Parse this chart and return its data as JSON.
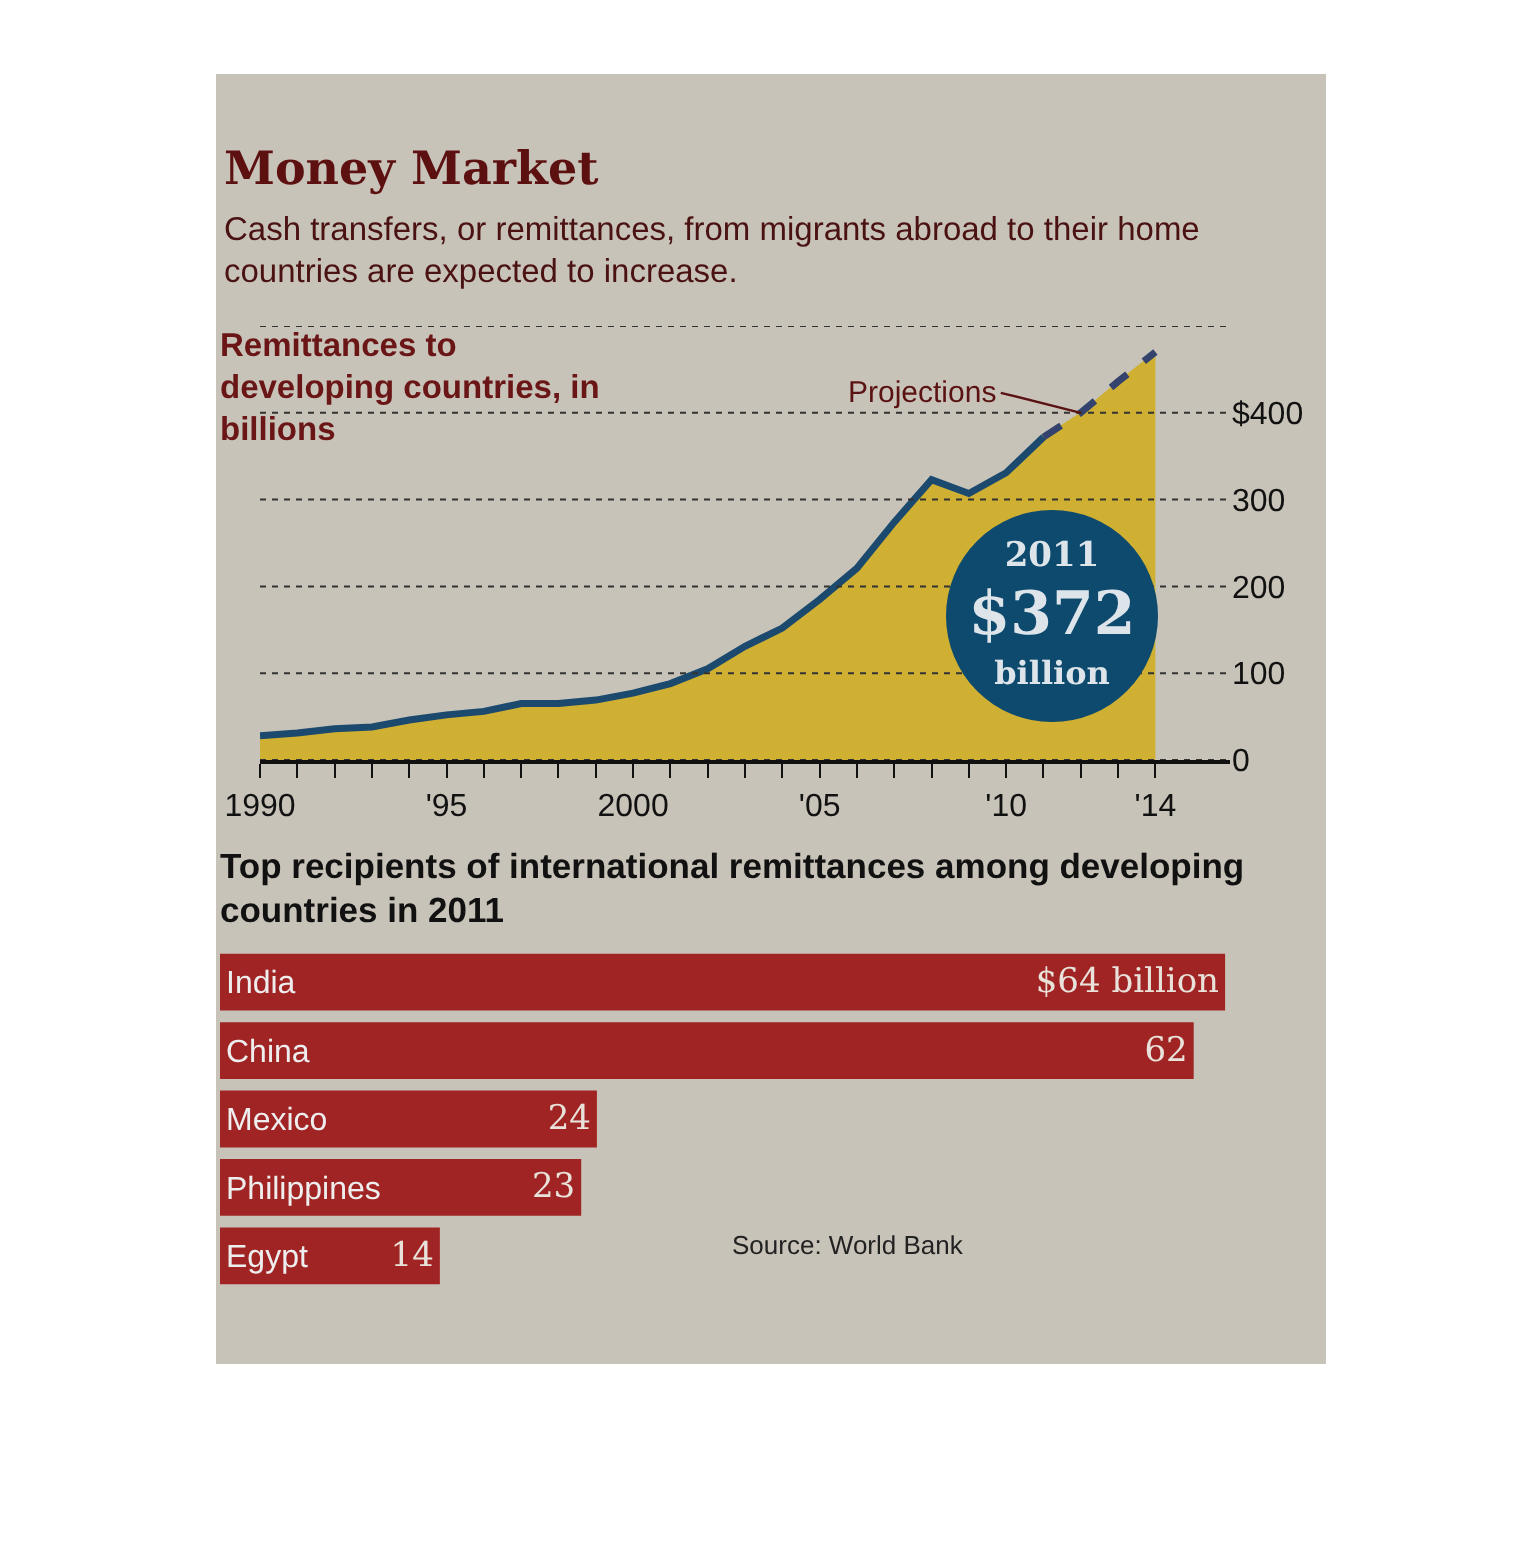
{
  "chart_data": [
    {
      "type": "area",
      "title": "Money Market",
      "subtitle": "Cash transfers, or remittances, from migrants abroad to their home countries are expected to increase.",
      "x": [
        1990,
        1991,
        1992,
        1993,
        1994,
        1995,
        1996,
        1997,
        1998,
        1999,
        2000,
        2001,
        2002,
        2003,
        2004,
        2005,
        2006,
        2007,
        2008,
        2009,
        2010,
        2011,
        2012,
        2013,
        2014
      ],
      "series": [
        {
          "type": "area",
          "color": "#cfb032",
          "values": [
            28,
            31,
            36,
            38,
            46,
            52,
            56,
            65,
            65,
            69,
            77,
            88,
            105,
            131,
            152,
            185,
            221,
            274,
            323,
            307,
            331,
            372,
            400,
            436,
            470
          ]
        },
        {
          "type": "line",
          "color": "#1b4a6e",
          "values": [
            28,
            31,
            36,
            38,
            46,
            52,
            56,
            65,
            65,
            69,
            77,
            88,
            105,
            131,
            152,
            185,
            221,
            274,
            323,
            307,
            331,
            372,
            null,
            null,
            null
          ]
        },
        {
          "type": "line",
          "color": "#34426e",
          "line_style": "dashed",
          "values": [
            null,
            null,
            null,
            null,
            null,
            null,
            null,
            null,
            null,
            null,
            null,
            null,
            null,
            null,
            null,
            null,
            null,
            null,
            null,
            null,
            null,
            372,
            400,
            436,
            470
          ]
        }
      ],
      "xlim": [
        1990,
        2016
      ],
      "xticks": [
        1990,
        {
          "value": 1991,
          "label": null
        },
        {
          "value": 1992,
          "label": null
        },
        {
          "value": 1993,
          "label": null
        },
        {
          "value": 1994,
          "label": null
        },
        {
          "value": 1995,
          "label": "'95"
        },
        {
          "value": 1996,
          "label": null
        },
        {
          "value": 1997,
          "label": null
        },
        {
          "value": 1998,
          "label": null
        },
        {
          "value": 1999,
          "label": null
        },
        2000,
        {
          "value": 2001,
          "label": null
        },
        {
          "value": 2002,
          "label": null
        },
        {
          "value": 2003,
          "label": null
        },
        {
          "value": 2004,
          "label": null
        },
        {
          "value": 2005,
          "label": "'05"
        },
        {
          "value": 2006,
          "label": null
        },
        {
          "value": 2007,
          "label": null
        },
        {
          "value": 2008,
          "label": null
        },
        {
          "value": 2009,
          "label": null
        },
        {
          "value": 2010,
          "label": "'10"
        },
        {
          "value": 2011,
          "label": null
        },
        {
          "value": 2012,
          "label": null
        },
        {
          "value": 2013,
          "label": null
        },
        {
          "value": 2014,
          "label": "'14"
        }
      ],
      "ylim": [
        0,
        500
      ],
      "yticks": [
        0,
        100,
        200,
        300,
        {
          "value": 400,
          "label": "$400"
        },
        {
          "value": 500,
          "label": null
        }
      ],
      "grid": "y",
      "annotations": [
        "Remittances to developing countries, in billions",
        {
          "text": "Projections",
          "x": 2012,
          "y": 400
        },
        "2011\n$372\nbillion"
      ]
    },
    {
      "type": "bar",
      "orientation": "horizontal",
      "title": "Top recipients of international remittances among developing countries in 2011",
      "categories": [
        "India",
        "China",
        "Mexico",
        "Philippines",
        "Egypt"
      ],
      "values": [
        64,
        62,
        24,
        23,
        14
      ],
      "value_labels": [
        "$64 billion",
        "62",
        "24",
        "23",
        "14"
      ],
      "color": "#a02424",
      "tick_labels": "y",
      "annotations": [
        "Source: World Bank"
      ]
    }
  ]
}
